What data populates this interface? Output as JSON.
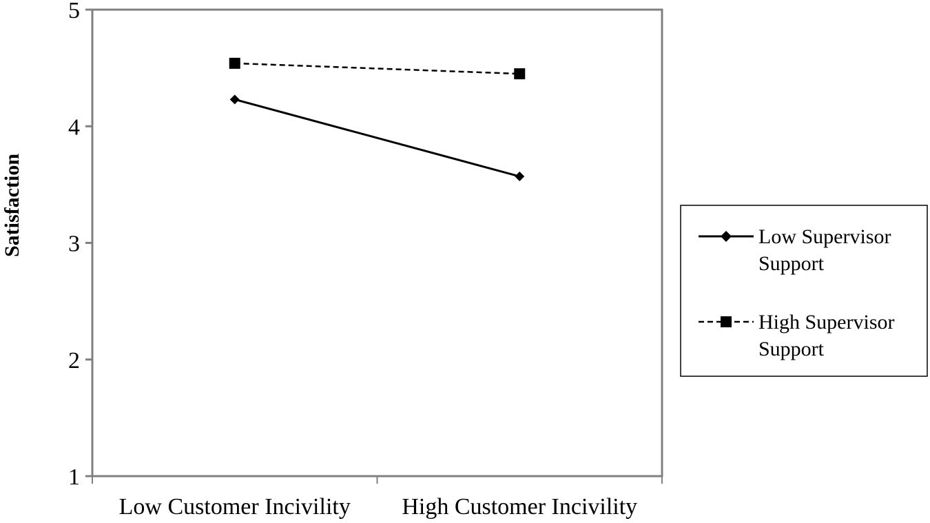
{
  "chart_data": {
    "type": "line",
    "ylabel": "Satisfaction",
    "xlabel": "",
    "categories": [
      "Low Customer Incivility",
      "High Customer Incivility"
    ],
    "ylim": [
      1,
      5
    ],
    "yticks": [
      "1",
      "2",
      "3",
      "4",
      "5"
    ],
    "grid": false,
    "legend_position": "right",
    "series": [
      {
        "name_lines": [
          "Low Supervisor",
          "Support"
        ],
        "values": [
          4.23,
          3.57
        ],
        "line_style": "solid",
        "marker": "diamond",
        "color": "#000000"
      },
      {
        "name_lines": [
          "High Supervisor",
          "Support"
        ],
        "values": [
          4.54,
          4.45
        ],
        "line_style": "dashed",
        "marker": "square",
        "color": "#000000"
      }
    ]
  }
}
